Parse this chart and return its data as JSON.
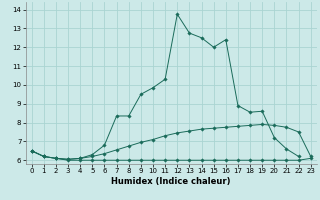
{
  "xlabel": "Humidex (Indice chaleur)",
  "background_color": "#cce9e8",
  "grid_color": "#aad4d2",
  "line_color": "#1a6b5a",
  "x_values": [
    0,
    1,
    2,
    3,
    4,
    5,
    6,
    7,
    8,
    9,
    10,
    11,
    12,
    13,
    14,
    15,
    16,
    17,
    18,
    19,
    20,
    21,
    22,
    23
  ],
  "line1": [
    6.5,
    6.2,
    6.1,
    6.0,
    6.0,
    6.0,
    6.0,
    6.0,
    6.0,
    6.0,
    6.0,
    6.0,
    6.0,
    6.0,
    6.0,
    6.0,
    6.0,
    6.0,
    6.0,
    6.0,
    6.0,
    6.0,
    6.0,
    6.1
  ],
  "line2": [
    6.5,
    6.2,
    6.1,
    6.05,
    6.1,
    6.2,
    6.35,
    6.55,
    6.75,
    6.95,
    7.1,
    7.3,
    7.45,
    7.55,
    7.65,
    7.7,
    7.75,
    7.8,
    7.85,
    7.9,
    7.85,
    7.75,
    7.5,
    6.2
  ],
  "line3": [
    6.5,
    6.2,
    6.1,
    6.05,
    6.1,
    6.3,
    6.8,
    8.35,
    8.35,
    9.5,
    9.85,
    10.3,
    13.75,
    12.75,
    12.5,
    12.0,
    12.4,
    8.9,
    8.55,
    8.6,
    7.2,
    6.6,
    6.2,
    null
  ],
  "ylim": [
    5.8,
    14.4
  ],
  "xlim": [
    -0.5,
    23.5
  ],
  "yticks": [
    6,
    7,
    8,
    9,
    10,
    11,
    12,
    13,
    14
  ],
  "xticks": [
    0,
    1,
    2,
    3,
    4,
    5,
    6,
    7,
    8,
    9,
    10,
    11,
    12,
    13,
    14,
    15,
    16,
    17,
    18,
    19,
    20,
    21,
    22,
    23
  ]
}
